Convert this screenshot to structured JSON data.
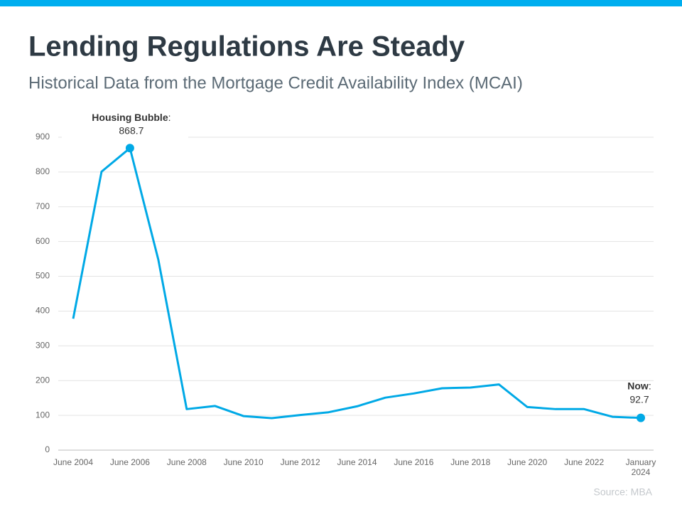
{
  "chart_data": {
    "type": "line",
    "title": "Lending Regulations Are Steady",
    "subtitle": "Historical Data from the Mortgage Credit Availability Index (MCAI)",
    "source": "Source: MBA",
    "categories": [
      "June 2004",
      null,
      "June 2006",
      null,
      "June 2008",
      null,
      "June 2010",
      null,
      "June 2012",
      null,
      "June 2014",
      null,
      "June 2016",
      null,
      "June 2018",
      null,
      "June 2020",
      null,
      "June 2022",
      null,
      "January 2024"
    ],
    "values": [
      378,
      801,
      868.7,
      548,
      118,
      127,
      98,
      92,
      101,
      109,
      126,
      151,
      163,
      178,
      180,
      189,
      124,
      118,
      118,
      96,
      92.7
    ],
    "color": "#00a9e6",
    "ylim": [
      0,
      900
    ],
    "yticks": [
      0,
      100,
      200,
      300,
      400,
      500,
      600,
      700,
      800,
      900
    ],
    "grid": true,
    "annotations": [
      {
        "label": "Housing Bubble",
        "punctuation": ":"
      },
      {
        "label": "Now",
        "punctuation": ":"
      }
    ]
  }
}
